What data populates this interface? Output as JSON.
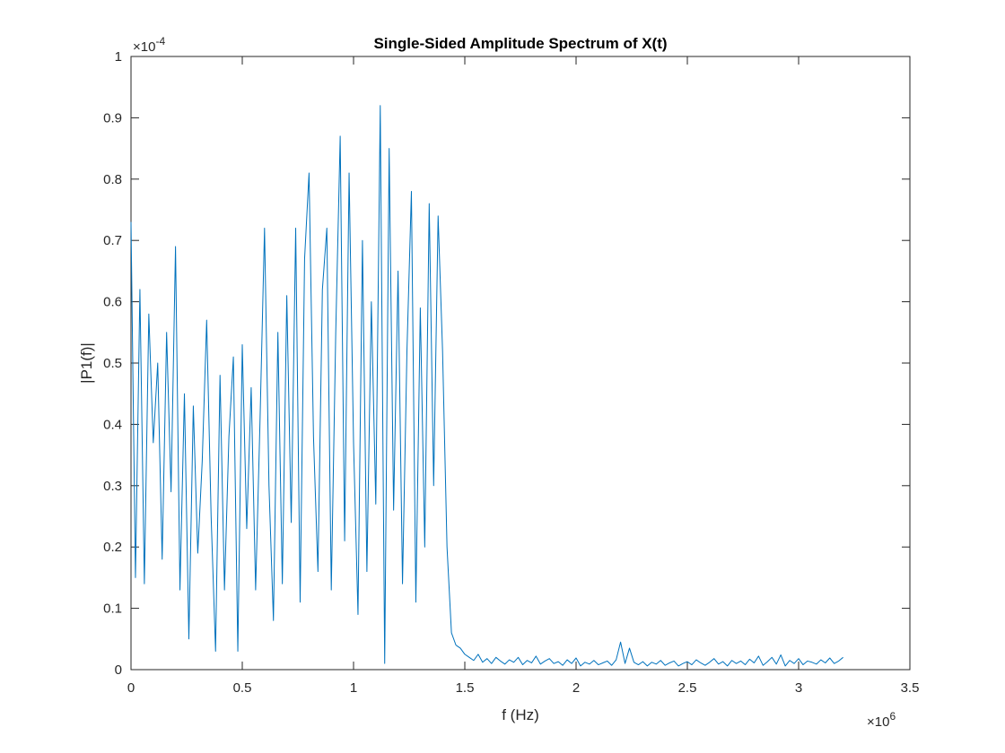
{
  "chart_data": {
    "type": "line",
    "title": "Single-Sided Amplitude Spectrum of X(t)",
    "x_label": "f (Hz)",
    "y_label": "|P1(f)|",
    "x_multiplier": {
      "base": "×10",
      "exponent": "6"
    },
    "y_multiplier": {
      "base": "×10",
      "exponent": "-4"
    },
    "color": "#0072bd",
    "xlim": [
      0,
      3.5
    ],
    "xticks": [
      0,
      0.5,
      1,
      1.5,
      2,
      2.5,
      3,
      3.5
    ],
    "ylim": [
      0,
      1
    ],
    "yticks": [
      0,
      0.1,
      0.2,
      0.3,
      0.4,
      0.5,
      0.6,
      0.7,
      0.8,
      0.9,
      1
    ],
    "grid": false,
    "x": [
      0,
      0.02,
      0.04,
      0.06,
      0.08,
      0.1,
      0.12,
      0.14,
      0.16,
      0.18,
      0.2,
      0.22,
      0.24,
      0.26,
      0.28,
      0.3,
      0.32,
      0.34,
      0.36,
      0.38,
      0.4,
      0.42,
      0.44,
      0.46,
      0.48,
      0.5,
      0.52,
      0.54,
      0.56,
      0.58,
      0.6,
      0.62,
      0.64,
      0.66,
      0.68,
      0.7,
      0.72,
      0.74,
      0.76,
      0.78,
      0.8,
      0.82,
      0.84,
      0.86,
      0.88,
      0.9,
      0.92,
      0.94,
      0.96,
      0.98,
      1,
      1.02,
      1.04,
      1.06,
      1.08,
      1.1,
      1.12,
      1.14,
      1.16,
      1.18,
      1.2,
      1.22,
      1.24,
      1.26,
      1.28,
      1.3,
      1.32,
      1.34,
      1.36,
      1.38,
      1.4,
      1.42,
      1.44,
      1.46,
      1.48,
      1.5,
      1.52,
      1.54,
      1.56,
      1.58,
      1.6,
      1.62,
      1.64,
      1.66,
      1.68,
      1.7,
      1.72,
      1.74,
      1.76,
      1.78,
      1.8,
      1.82,
      1.84,
      1.86,
      1.88,
      1.9,
      1.92,
      1.94,
      1.96,
      1.98,
      2,
      2.02,
      2.04,
      2.06,
      2.08,
      2.1,
      2.12,
      2.14,
      2.16,
      2.18,
      2.2,
      2.22,
      2.24,
      2.26,
      2.28,
      2.3,
      2.32,
      2.34,
      2.36,
      2.38,
      2.4,
      2.42,
      2.44,
      2.46,
      2.48,
      2.5,
      2.52,
      2.54,
      2.56,
      2.58,
      2.6,
      2.62,
      2.64,
      2.66,
      2.68,
      2.7,
      2.72,
      2.74,
      2.76,
      2.78,
      2.8,
      2.82,
      2.84,
      2.86,
      2.88,
      2.9,
      2.92,
      2.94,
      2.96,
      2.98,
      3,
      3.02,
      3.04,
      3.06,
      3.08,
      3.1,
      3.12,
      3.14,
      3.16,
      3.18,
      3.2
    ],
    "values": [
      0.73,
      0.15,
      0.62,
      0.14,
      0.58,
      0.37,
      0.5,
      0.18,
      0.55,
      0.29,
      0.69,
      0.13,
      0.45,
      0.05,
      0.43,
      0.19,
      0.34,
      0.57,
      0.25,
      0.03,
      0.48,
      0.13,
      0.38,
      0.51,
      0.03,
      0.53,
      0.23,
      0.46,
      0.13,
      0.41,
      0.72,
      0.3,
      0.08,
      0.55,
      0.14,
      0.61,
      0.24,
      0.72,
      0.11,
      0.67,
      0.81,
      0.38,
      0.16,
      0.62,
      0.72,
      0.13,
      0.55,
      0.87,
      0.21,
      0.81,
      0.37,
      0.09,
      0.7,
      0.16,
      0.6,
      0.27,
      0.92,
      0.01,
      0.85,
      0.26,
      0.65,
      0.14,
      0.52,
      0.78,
      0.11,
      0.59,
      0.2,
      0.76,
      0.3,
      0.74,
      0.52,
      0.2,
      0.06,
      0.04,
      0.035,
      0.025,
      0.02,
      0.015,
      0.025,
      0.012,
      0.018,
      0.01,
      0.02,
      0.014,
      0.009,
      0.016,
      0.012,
      0.02,
      0.008,
      0.015,
      0.011,
      0.022,
      0.009,
      0.014,
      0.018,
      0.01,
      0.013,
      0.007,
      0.016,
      0.01,
      0.019,
      0.006,
      0.012,
      0.009,
      0.015,
      0.008,
      0.011,
      0.014,
      0.007,
      0.016,
      0.045,
      0.01,
      0.035,
      0.012,
      0.008,
      0.013,
      0.006,
      0.012,
      0.009,
      0.015,
      0.007,
      0.011,
      0.014,
      0.006,
      0.01,
      0.013,
      0.008,
      0.016,
      0.011,
      0.007,
      0.012,
      0.018,
      0.009,
      0.013,
      0.006,
      0.015,
      0.01,
      0.014,
      0.008,
      0.017,
      0.011,
      0.022,
      0.007,
      0.013,
      0.02,
      0.009,
      0.024,
      0.006,
      0.015,
      0.01,
      0.018,
      0.008,
      0.014,
      0.012,
      0.009,
      0.016,
      0.011,
      0.019,
      0.01,
      0.014,
      0.02
    ]
  }
}
